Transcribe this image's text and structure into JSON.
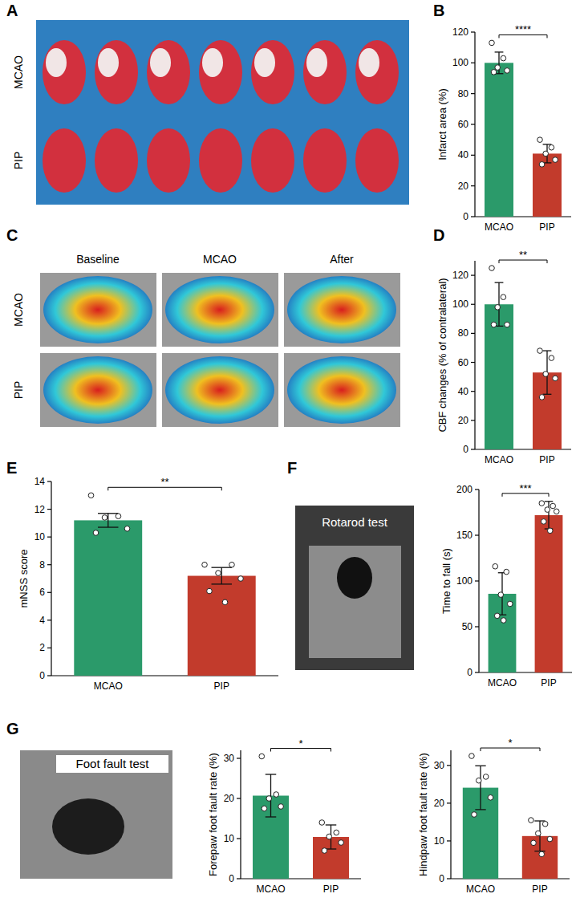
{
  "panels": [
    "A",
    "B",
    "C",
    "D",
    "E",
    "F",
    "G"
  ],
  "images": [
    {
      "row_labels": [
        "MCAO",
        "PIP"
      ]
    },
    {
      "row_labels": [
        "MCAO",
        "PIP"
      ],
      "column_labels": [
        "Baseline",
        "MCAO",
        "After"
      ]
    },
    {
      "caption": "Rotarod test"
    },
    {
      "caption": "Foot fault test"
    }
  ],
  "chart_data": [
    {
      "type": "bar",
      "y_label": "Infarct area (%)",
      "categories": [
        "MCAO",
        "PIP"
      ],
      "values": [
        100,
        41
      ],
      "errors": [
        7,
        6
      ],
      "points": [
        [
          113,
          103,
          97,
          95,
          94
        ],
        [
          50,
          45,
          41,
          37,
          34
        ]
      ],
      "colors": [
        "#2b9a6a",
        "#c23b2c"
      ],
      "ylim": [
        0,
        120
      ],
      "yticks": [
        0,
        20,
        40,
        60,
        80,
        100,
        120
      ],
      "annotations": [
        {
          "text": "****"
        }
      ]
    },
    {
      "type": "bar",
      "y_label": "CBF changes (% of contralateral)",
      "categories": [
        "MCAO",
        "PIP"
      ],
      "values": [
        100,
        53
      ],
      "errors": [
        15,
        15
      ],
      "points": [
        [
          125,
          105,
          98,
          86,
          86
        ],
        [
          68,
          63,
          52,
          49,
          36
        ]
      ],
      "colors": [
        "#2b9a6a",
        "#c23b2c"
      ],
      "ylim": [
        0,
        130
      ],
      "yticks": [
        0,
        20,
        40,
        60,
        80,
        100,
        120
      ],
      "annotations": [
        {
          "text": "**"
        }
      ]
    },
    {
      "type": "bar",
      "y_label": "mNSS score",
      "categories": [
        "MCAO",
        "PIP"
      ],
      "values": [
        11.2,
        7.2
      ],
      "errors": [
        0.5,
        0.6
      ],
      "points": [
        [
          13,
          11.5,
          11.4,
          10.6,
          10.3
        ],
        [
          8,
          8,
          7.4,
          7,
          6.1,
          5.3
        ]
      ],
      "colors": [
        "#2b9a6a",
        "#c23b2c"
      ],
      "ylim": [
        0,
        14
      ],
      "yticks": [
        0,
        2,
        4,
        6,
        8,
        10,
        12,
        14
      ],
      "annotations": [
        {
          "text": "**"
        }
      ]
    },
    {
      "type": "bar",
      "y_label": "Time to fall (s)",
      "categories": [
        "MCAO",
        "PIP"
      ],
      "values": [
        86,
        172
      ],
      "errors": [
        23,
        15
      ],
      "points": [
        [
          116,
          110,
          85,
          75,
          62,
          57
        ],
        [
          185,
          182,
          178,
          176,
          165,
          155
        ]
      ],
      "colors": [
        "#2b9a6a",
        "#c23b2c"
      ],
      "ylim": [
        0,
        200
      ],
      "yticks": [
        0,
        50,
        100,
        150,
        200
      ],
      "annotations": [
        {
          "text": "***"
        }
      ]
    },
    {
      "type": "bar",
      "y_label": "Forepaw foot fault rate (%)",
      "categories": [
        "MCAO",
        "PIP"
      ],
      "values": [
        20.7,
        10.4
      ],
      "errors": [
        5.3,
        3
      ],
      "points": [
        [
          30.5,
          21,
          20,
          18,
          17.5
        ],
        [
          14,
          11.5,
          10.5,
          9,
          7
        ]
      ],
      "colors": [
        "#2b9a6a",
        "#c23b2c"
      ],
      "ylim": [
        0,
        32
      ],
      "yticks": [
        0,
        10,
        20,
        30
      ],
      "annotations": [
        {
          "text": "*"
        }
      ]
    },
    {
      "type": "bar",
      "y_label": "Hindpaw foot fault rate (%)",
      "categories": [
        "MCAO",
        "PIP"
      ],
      "values": [
        24.1,
        11.3
      ],
      "errors": [
        5.8,
        4
      ],
      "points": [
        [
          32.5,
          27,
          26,
          21.5,
          17
        ],
        [
          15.5,
          14.5,
          12,
          10.5,
          9.5,
          6.5
        ]
      ],
      "colors": [
        "#2b9a6a",
        "#c23b2c"
      ],
      "ylim": [
        0,
        34
      ],
      "yticks": [
        0,
        10,
        20,
        30
      ],
      "annotations": [
        {
          "text": "*"
        }
      ]
    }
  ]
}
